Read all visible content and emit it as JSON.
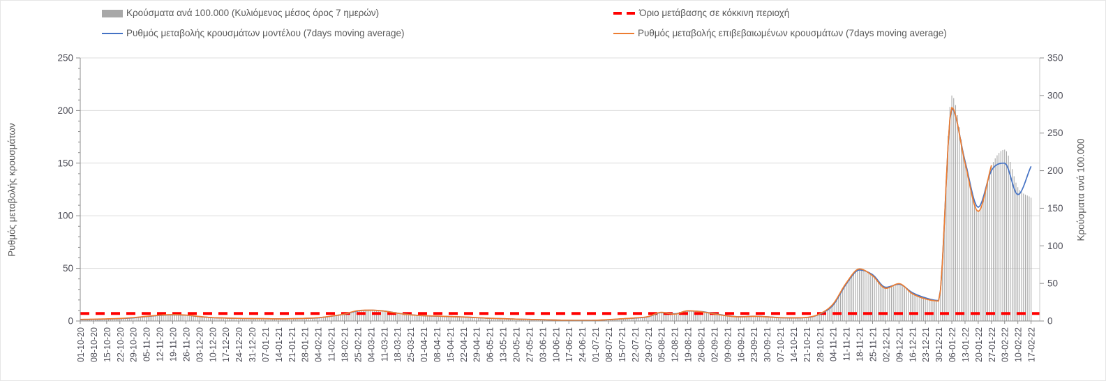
{
  "chart_data": {
    "type": "combo",
    "title": "",
    "grid": true,
    "legend_position": "top",
    "categories": [
      "01-10-20",
      "08-10-20",
      "15-10-20",
      "22-10-20",
      "29-10-20",
      "05-11-20",
      "12-11-20",
      "19-11-20",
      "26-11-20",
      "03-12-20",
      "10-12-20",
      "17-12-20",
      "24-12-20",
      "31-12-20",
      "07-01-21",
      "14-01-21",
      "21-01-21",
      "28-01-21",
      "04-02-21",
      "11-02-21",
      "18-02-21",
      "25-02-21",
      "04-03-21",
      "11-03-21",
      "18-03-21",
      "25-03-21",
      "01-04-21",
      "08-04-21",
      "15-04-21",
      "22-04-21",
      "29-04-21",
      "06-05-21",
      "13-05-21",
      "20-05-21",
      "27-05-21",
      "03-06-21",
      "10-06-21",
      "17-06-21",
      "24-06-21",
      "01-07-21",
      "08-07-21",
      "15-07-21",
      "22-07-21",
      "29-07-21",
      "05-08-21",
      "12-08-21",
      "19-08-21",
      "26-08-21",
      "02-09-21",
      "09-09-21",
      "16-09-21",
      "23-09-21",
      "30-09-21",
      "07-10-21",
      "14-10-21",
      "21-10-21",
      "28-10-21",
      "04-11-21",
      "11-11-21",
      "18-11-21",
      "25-11-21",
      "02-12-21",
      "09-12-21",
      "16-12-21",
      "23-12-21",
      "30-12-21",
      "06-01-22",
      "13-01-22",
      "20-01-22",
      "27-01-22",
      "03-02-22",
      "10-02-22",
      "17-02-22"
    ],
    "left_axis": {
      "title": "Ρυθμός μεταβολής κρουσμάτων",
      "min": 0,
      "max": 250,
      "major": 50,
      "minor": 10
    },
    "right_axis": {
      "title": "Κρούσματα ανά 100.000",
      "min": 0,
      "max": 350,
      "major": 50
    },
    "series": [
      {
        "name": "Κρούσματα ανά 100.000 (Κυλιόμενος μέσος όρος 7 ημερών)",
        "type": "bar",
        "axis": "right",
        "color": "#a8a8a8",
        "values": [
          2.1,
          2.4,
          2.8,
          3.4,
          4.5,
          6.2,
          7.7,
          8.4,
          7.8,
          6.0,
          4.5,
          3.9,
          3.5,
          3.2,
          3.1,
          2.8,
          3.1,
          3.5,
          4.3,
          6.4,
          9.2,
          13.7,
          14.4,
          13.2,
          10.4,
          8.3,
          7.0,
          6.6,
          5.9,
          5.3,
          4.5,
          3.6,
          3.1,
          2.5,
          2.1,
          1.7,
          1.3,
          1.0,
          0.8,
          1.0,
          1.8,
          2.9,
          4.1,
          5.9,
          11.5,
          9.1,
          13.6,
          12.3,
          9.5,
          6.7,
          5.5,
          6.2,
          5.5,
          4.3,
          4.2,
          4.8,
          9.5,
          22,
          50,
          70,
          61,
          44,
          50,
          37,
          30,
          27,
          300,
          213,
          146,
          206,
          228,
          178,
          164
        ]
      },
      {
        "name": "Όριο μετάβασης σε κόκκινη περιοχή",
        "type": "threshold",
        "axis": "right",
        "color": "#ff0000",
        "value": 10
      },
      {
        "name": "Ρυθμός μεταβολής κρουσμάτων μοντέλου (7days moving average)",
        "type": "line",
        "axis": "left",
        "color": "#4472c4",
        "values": [
          1.2,
          1.5,
          1.8,
          2.2,
          3.0,
          4.2,
          5.3,
          5.8,
          5.5,
          4.2,
          3.2,
          2.8,
          2.5,
          2.3,
          2.2,
          2.0,
          2.2,
          2.5,
          3.0,
          4.5,
          6.5,
          9.5,
          10.2,
          9.5,
          7.5,
          6.0,
          5.0,
          4.6,
          4.2,
          3.8,
          3.2,
          2.6,
          2.2,
          1.8,
          1.5,
          1.2,
          0.9,
          0.7,
          0.6,
          0.7,
          1.2,
          2.0,
          2.8,
          4.0,
          8.0,
          6.8,
          9.5,
          9.0,
          7.0,
          5.0,
          4.0,
          4.5,
          4.0,
          3.2,
          3.0,
          3.3,
          6.5,
          15,
          35,
          48.5,
          44,
          32,
          35,
          27,
          22,
          19.5,
          202,
          152,
          108,
          143,
          150,
          120,
          147
        ]
      },
      {
        "name": "Ρυθμός μεταβολής επιβεβαιωμένων κρουσμάτων (7days moving average)",
        "type": "line",
        "axis": "left",
        "color": "#ed7d31",
        "values": [
          1.5,
          1.7,
          2.0,
          2.4,
          3.2,
          4.4,
          5.5,
          6.0,
          5.6,
          4.3,
          3.2,
          2.8,
          2.5,
          2.3,
          2.2,
          2.0,
          2.2,
          2.5,
          3.1,
          4.6,
          6.6,
          9.8,
          10.3,
          9.4,
          7.4,
          5.9,
          5.0,
          4.7,
          4.2,
          3.8,
          3.2,
          2.6,
          2.2,
          1.8,
          1.5,
          1.2,
          0.9,
          0.7,
          0.6,
          0.7,
          1.3,
          2.1,
          2.9,
          4.2,
          8.2,
          6.5,
          9.7,
          8.8,
          6.8,
          4.8,
          3.9,
          4.4,
          3.9,
          3.1,
          3.0,
          3.4,
          6.8,
          16,
          36,
          49.5,
          43,
          31,
          35.5,
          26,
          21,
          19,
          203,
          150,
          104,
          148,
          null,
          null,
          null
        ]
      }
    ]
  }
}
